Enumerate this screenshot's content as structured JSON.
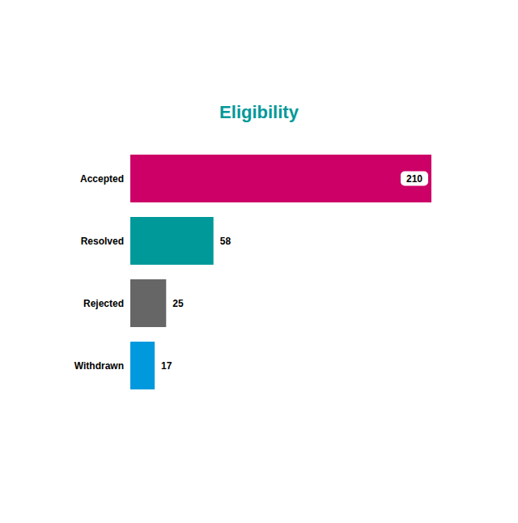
{
  "chart_data": {
    "type": "bar",
    "orientation": "horizontal",
    "title": "Eligibility",
    "categories": [
      "Accepted",
      "Resolved",
      "Rejected",
      "Withdrawn"
    ],
    "values": [
      210,
      58,
      25,
      17
    ],
    "colors": [
      "#cc0066",
      "#009999",
      "#666666",
      "#0099dd"
    ],
    "xlim": [
      0,
      210
    ],
    "data_labels": true,
    "tick_labels": "y"
  }
}
